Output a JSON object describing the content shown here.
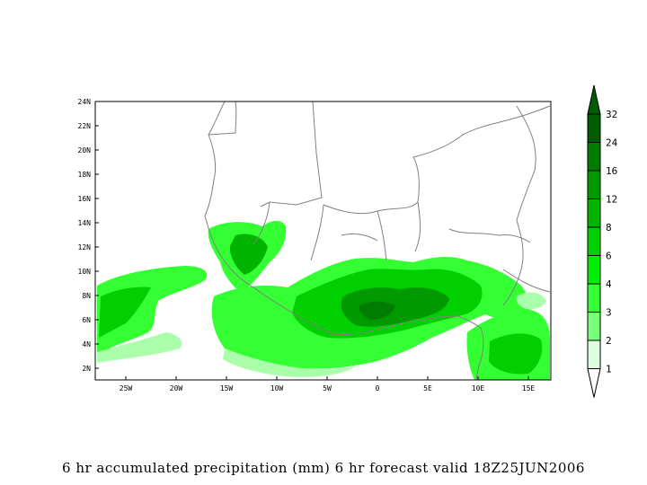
{
  "map": {
    "lat_labels": [
      "24N",
      "22N",
      "20N",
      "18N",
      "16N",
      "14N",
      "12N",
      "10N",
      "8N",
      "6N",
      "4N",
      "2N"
    ],
    "lon_labels": [
      "25W",
      "20W",
      "15W",
      "10W",
      "5W",
      "0",
      "5E",
      "10E",
      "15E"
    ],
    "extent": {
      "lat_min": 1,
      "lat_max": 24,
      "lon_min": -28,
      "lon_max": 17
    }
  },
  "legend": {
    "levels": [
      "1",
      "2",
      "3",
      "4",
      "6",
      "8",
      "12",
      "16",
      "24",
      "32"
    ],
    "colors": [
      "#ddffdd",
      "#aaffaa",
      "#77ff77",
      "#33ff33",
      "#00ee00",
      "#00d000",
      "#00b400",
      "#009a00",
      "#007c00",
      "#005c00"
    ]
  },
  "caption": "6 hr accumulated precipitation (mm) 6 hr forecast valid 18Z25JUN2006"
}
